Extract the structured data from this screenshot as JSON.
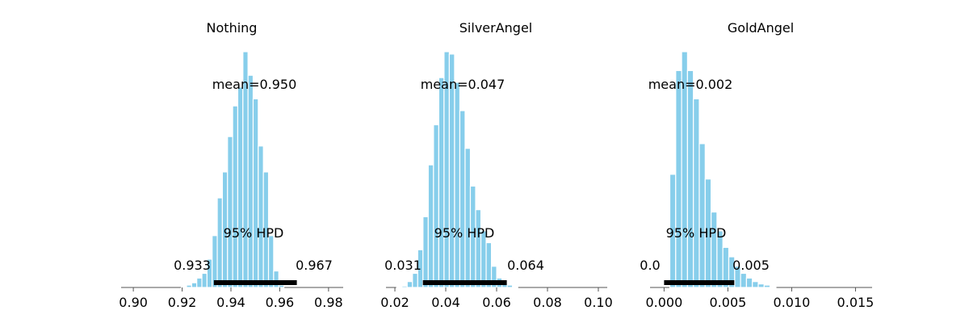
{
  "chart_data": [
    {
      "type": "bar",
      "title": "Nothing",
      "xlim": [
        0.895,
        0.986
      ],
      "xticks": [
        0.9,
        0.92,
        0.94,
        0.96,
        0.98
      ],
      "xtick_labels": [
        "0.90",
        "0.92",
        "0.94",
        "0.96",
        "0.98"
      ],
      "bin_start": 0.9197,
      "bin_width": 0.0021,
      "counts": [
        0.3,
        1,
        2,
        4,
        6,
        12,
        22,
        38,
        49,
        64,
        77,
        85,
        100,
        90,
        80,
        60,
        49,
        22,
        7,
        1
      ],
      "mean_label": "mean=0.950",
      "hpd_label": "95% HPD",
      "hpd": [
        0.933,
        0.967
      ],
      "hpd_low_label": "0.933",
      "hpd_high_label": "0.967",
      "color": "#87ceeb"
    },
    {
      "type": "bar",
      "title": "SilverAngel",
      "xlim": [
        0.0165,
        0.1035
      ],
      "xticks": [
        0.02,
        0.04,
        0.06,
        0.08,
        0.1
      ],
      "xtick_labels": [
        "0.02",
        "0.04",
        "0.06",
        "0.08",
        "0.10"
      ],
      "bin_start": 0.0207,
      "bin_width": 0.00207,
      "counts": [
        0.3,
        0.6,
        2.5,
        6,
        16,
        30,
        52,
        69,
        89,
        100,
        99,
        87,
        75,
        59,
        43,
        33,
        24,
        19,
        9,
        4,
        2,
        1,
        0.3
      ],
      "mean_label": "mean=0.047",
      "hpd_label": "95% HPD",
      "hpd": [
        0.031,
        0.064
      ],
      "hpd_low_label": "0.031",
      "hpd_high_label": "0.064",
      "color": "#87ceeb"
    },
    {
      "type": "bar",
      "title": "GoldAngel",
      "xlim": [
        -0.0011,
        0.0163
      ],
      "xticks": [
        0.0,
        0.005,
        0.01,
        0.015
      ],
      "xtick_labels": [
        "0.000",
        "0.005",
        "0.010",
        "0.015"
      ],
      "bin_start": 0.00045,
      "bin_width": 0.000462,
      "counts": [
        48,
        92,
        100,
        92,
        80,
        61,
        46,
        32,
        24,
        17,
        13,
        9,
        6,
        4,
        2.5,
        1.5,
        1,
        0.4
      ],
      "mean_label": "mean=0.002",
      "hpd_label": "95% HPD",
      "hpd": [
        0.0,
        0.0055
      ],
      "hpd_low_label": "0.0",
      "hpd_high_label": "0.005",
      "color": "#87ceeb"
    }
  ]
}
